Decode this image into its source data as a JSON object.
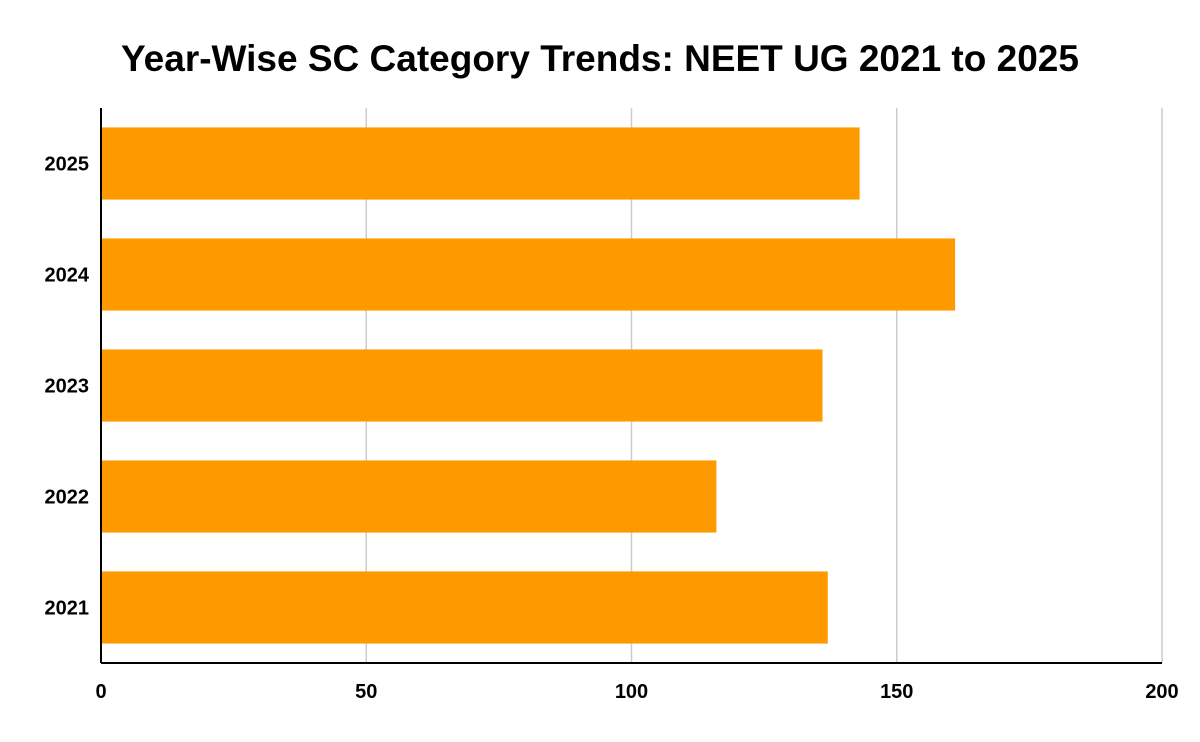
{
  "chart_data": {
    "type": "bar",
    "orientation": "horizontal",
    "title": "Year-Wise SC Category Trends: NEET UG 2021 to 2025",
    "xlabel": "",
    "ylabel": "",
    "categories": [
      "2025",
      "2024",
      "2023",
      "2022",
      "2021"
    ],
    "values": [
      143,
      161,
      136,
      116,
      137
    ],
    "xlim": [
      0,
      200
    ],
    "xticks": [
      "0",
      "50",
      "100",
      "150",
      "200"
    ],
    "grid": true,
    "legend": "none",
    "bar_color": "#ff9900",
    "grid_color": "#cccccc",
    "axis_color": "#000000"
  }
}
